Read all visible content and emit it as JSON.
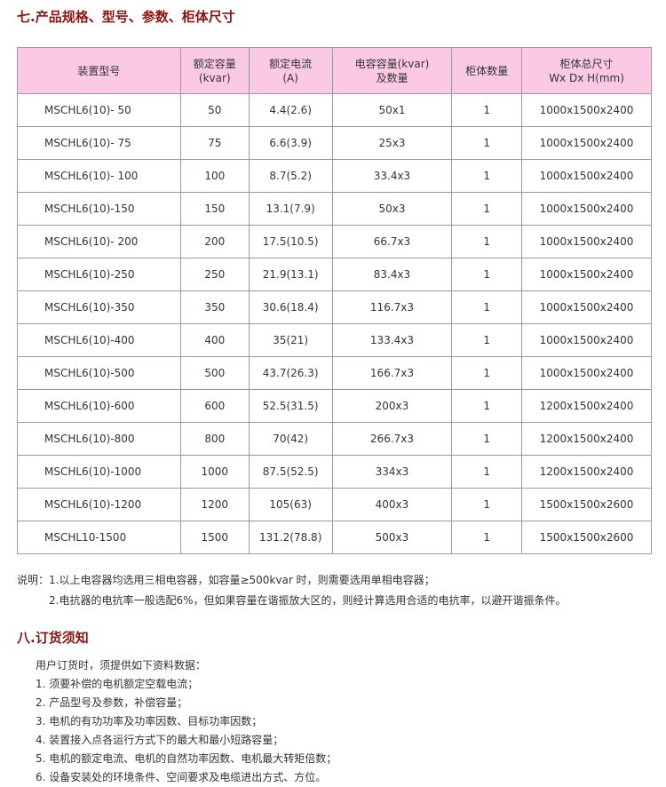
{
  "section7": {
    "title": "七.产品规格、型号、参数、柜体尺寸"
  },
  "table": {
    "headers": [
      [
        "装置型号",
        ""
      ],
      [
        "额定容量",
        "(kvar)"
      ],
      [
        "额定电流",
        "(A)"
      ],
      [
        "电容容量(kvar)",
        "及数量"
      ],
      [
        "柜体数量",
        ""
      ],
      [
        "柜体总尺寸",
        "Wx Dx H(mm)"
      ]
    ],
    "rows": [
      [
        "MSCHL6(10)- 50",
        "50",
        "4.4(2.6)",
        "50x1",
        "1",
        "1000x1500x2400"
      ],
      [
        "MSCHL6(10)- 75",
        "75",
        "6.6(3.9)",
        "25x3",
        "1",
        "1000x1500x2400"
      ],
      [
        "MSCHL6(10)- 100",
        "100",
        "8.7(5.2)",
        "33.4x3",
        "1",
        "1000x1500x2400"
      ],
      [
        "MSCHL6(10)-150",
        "150",
        "13.1(7.9)",
        "50x3",
        "1",
        "1000x1500x2400"
      ],
      [
        "MSCHL6(10)- 200",
        "200",
        "17.5(10.5)",
        "66.7x3",
        "1",
        "1000x1500x2400"
      ],
      [
        "MSCHL6(10)-250",
        "250",
        "21.9(13.1)",
        "83.4x3",
        "1",
        "1000x1500x2400"
      ],
      [
        "MSCHL6(10)-350",
        "350",
        "30.6(18.4)",
        "116.7x3",
        "1",
        "1000x1500x2400"
      ],
      [
        "MSCHL6(10)-400",
        "400",
        "35(21)",
        "133.4x3",
        "1",
        "1000x1500x2400"
      ],
      [
        "MSCHL6(10)-500",
        "500",
        "43.7(26.3)",
        "166.7x3",
        "1",
        "1000x1500x2400"
      ],
      [
        "MSCHL6(10)-600",
        "600",
        "52.5(31.5)",
        "200x3",
        "1",
        "1200x1500x2400"
      ],
      [
        "MSCHL6(10)-800",
        "800",
        "70(42)",
        "266.7x3",
        "1",
        "1200x1500x2400"
      ],
      [
        "MSCHL6(10)-1000",
        "1000",
        "87.5(52.5)",
        "334x3",
        "1",
        "1200x1500x2400"
      ],
      [
        "MSCHL6(10)-1200",
        "1200",
        "105(63)",
        "400x3",
        "1",
        "1500x1500x2600"
      ],
      [
        "MSCHL10-1500",
        "1500",
        "131.2(78.8)",
        "500x3",
        "1",
        "1500x1500x2600"
      ]
    ]
  },
  "notes": [
    "说明：1.以上电容器均选用三相电容器，如容量≥500kvar 时，则需要选用单相电容器；",
    "2.电抗器的电抗率一般选配6%，但如果容量在谐振放大区的，则经计算选用合适的电抗率，以避开谐振条件。"
  ],
  "section8": {
    "title": "八.订货须知",
    "intro": "用户订货时，须提供如下资料数据：",
    "items": [
      "1.  须要补偿的电机额定空载电流；",
      "2.  产品型号及参数，补偿容量；",
      "3.  电机的有功功率及功率因数、目标功率因数；",
      "4.  装置接入点各运行方式下的最大和最小短路容量；",
      "5.  电机的额定电流、电机的自然功率因数、电机最大转矩倍数；",
      "6.  设备安装处的环境条件、空间要求及电缆进出方式、方位。"
    ]
  },
  "colors": {
    "heading": "#8b1414",
    "header_bg": "#fcc9e4"
  }
}
